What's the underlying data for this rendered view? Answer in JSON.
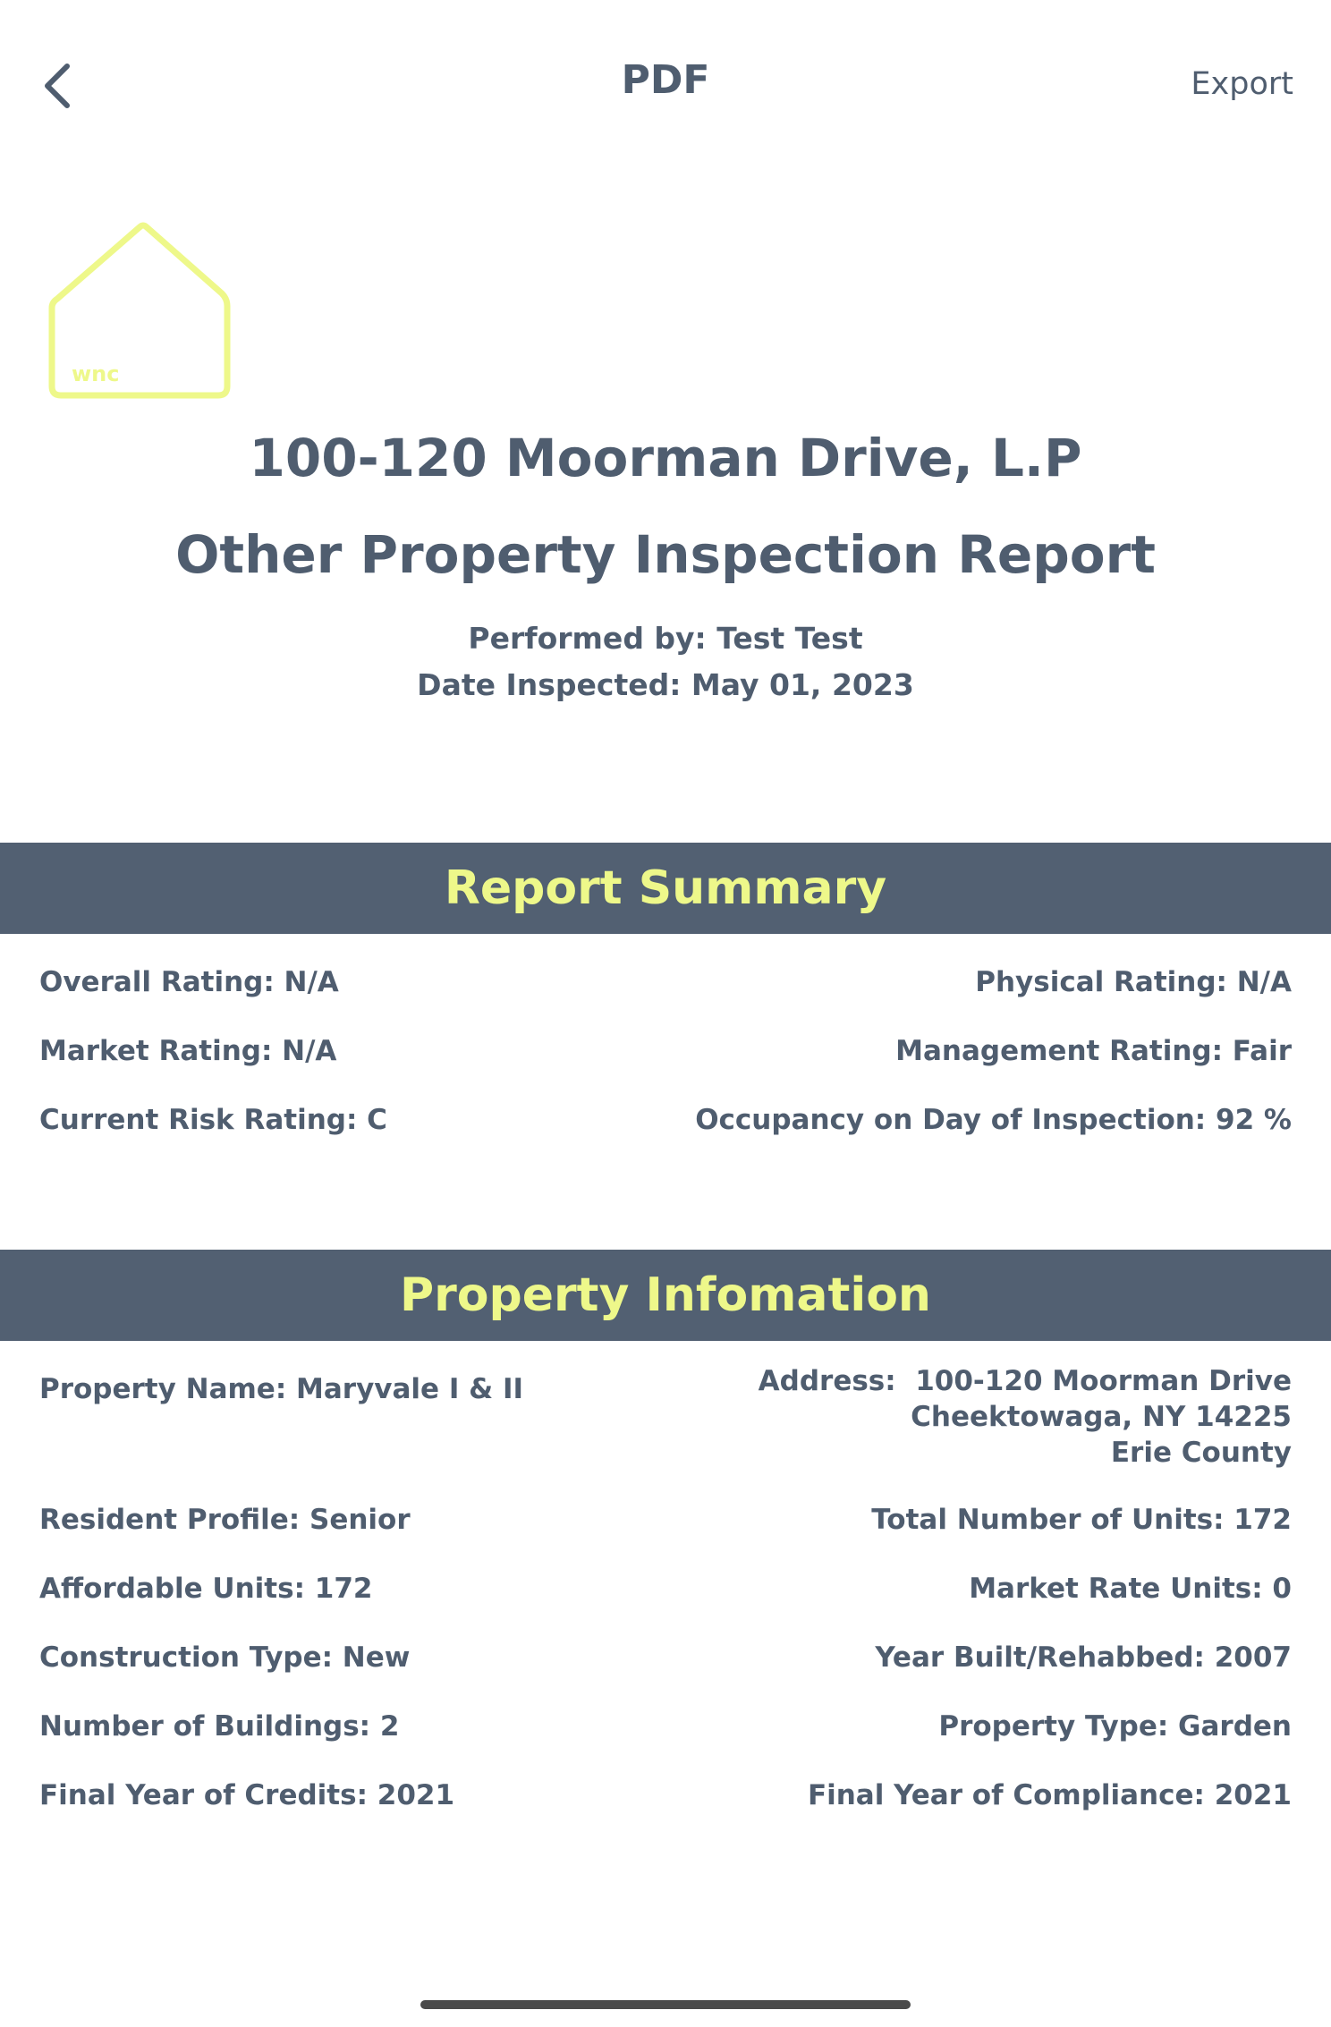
{
  "nav": {
    "title": "PDF",
    "export_label": "Export"
  },
  "logo": {
    "text": "wnc",
    "color": "#eef88a"
  },
  "header": {
    "property_name": "100-120 Moorman Drive, L.P",
    "report_title": "Other Property Inspection Report",
    "performed_by": "Performed by: Test Test",
    "date_inspected": "Date Inspected: May 01, 2023"
  },
  "report_summary": {
    "title": "Report Summary",
    "overall_rating": "Overall Rating: N/A",
    "physical_rating": "Physical Rating: N/A",
    "market_rating": "Market Rating: N/A",
    "management_rating": "Management Rating: Fair",
    "current_risk_rating": "Current Risk Rating: C",
    "occupancy": "Occupancy on Day of Inspection: 92 %"
  },
  "property_info": {
    "title": "Property Infomation",
    "property_name": "Property Name: Maryvale I & II",
    "address_line1": "Address:  100-120 Moorman Drive",
    "address_line2": "Cheektowaga, NY 14225",
    "address_line3": "Erie County",
    "resident_profile": "Resident Profile: Senior",
    "total_units": "Total Number of Units: 172",
    "affordable_units": "Affordable Units: 172",
    "market_rate_units": "Market Rate Units: 0",
    "construction_type": "Construction Type: New",
    "year_built": "Year Built/Rehabbed: 2007",
    "number_of_buildings": "Number of Buildings: 2",
    "property_type": "Property Type: Garden",
    "final_year_credits": "Final Year of Credits: 2021",
    "final_year_compliance": "Final Year of Compliance: 2021"
  },
  "colors": {
    "text": "#4f5d6f",
    "section_bar": "#526072",
    "accent_yellow": "#eef88a"
  }
}
